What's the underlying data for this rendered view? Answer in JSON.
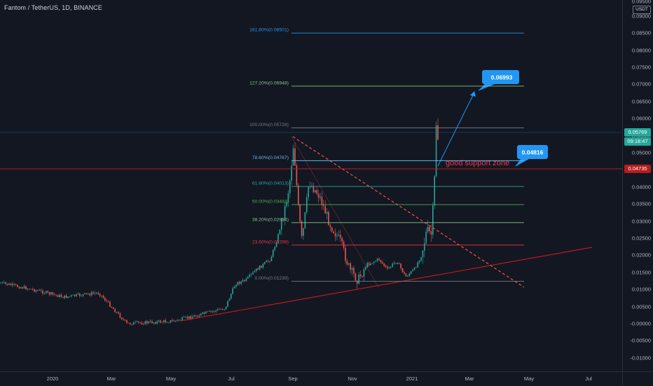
{
  "header": {
    "symbol": "Fantom / TetherUS, 1D, BINANCE"
  },
  "price_axis": {
    "currency": "USDT",
    "top_partial": "0.09500",
    "ticks": [
      "0.09000",
      "0.08500",
      "0.08000",
      "0.07500",
      "0.07000",
      "0.06500",
      "0.06000",
      "0.05500",
      "0.05000",
      "0.04500",
      "0.04000",
      "0.03500",
      "0.03000",
      "0.02500",
      "0.02000",
      "0.01500",
      "0.01000",
      "0.00500",
      "-0.00000",
      "-0.00500",
      "-0.01000"
    ],
    "tick_values": [
      0.09,
      0.085,
      0.08,
      0.075,
      0.07,
      0.065,
      0.06,
      0.055,
      0.05,
      0.045,
      0.04,
      0.035,
      0.03,
      0.025,
      0.02,
      0.015,
      0.01,
      0.005,
      0,
      -0.005,
      -0.01
    ],
    "last_price": "0.05769",
    "countdown": "09:18:47",
    "support_price": "0.04735",
    "last_price_color": "#26a69a",
    "support_color": "#b71c1c"
  },
  "time_axis": {
    "labels": [
      "2020",
      "Mar",
      "May",
      "Jul",
      "Sep",
      "Nov",
      "2021",
      "Mar",
      "May",
      "Jul"
    ]
  },
  "fib_levels": [
    {
      "label": "161.80%(0.08501)",
      "price": 0.08501,
      "color": "#2196f3"
    },
    {
      "label": "127.20%(0.06948)",
      "price": 0.06948,
      "color": "#81c784"
    },
    {
      "label": "100.00%(0.05728)",
      "price": 0.05728,
      "color": "#787b86"
    },
    {
      "label": "78.60%(0.04767)",
      "price": 0.04767,
      "color": "#64b5f6"
    },
    {
      "label": "61.80%(0.04013)",
      "price": 0.04013,
      "color": "#26a69a"
    },
    {
      "label": "50.00%(0.03483)",
      "price": 0.03483,
      "color": "#4caf50"
    },
    {
      "label": "38.20%(0.02954)",
      "price": 0.02954,
      "color": "#81c784"
    },
    {
      "label": "23.60%(0.02299)",
      "price": 0.02299,
      "color": "#f23645"
    },
    {
      "label": "0.00%(0.01239)",
      "price": 0.01239,
      "color": "#787b86"
    }
  ],
  "annotations": {
    "target_callout": "0.06993",
    "support_callout": "0.04816",
    "support_text": "good support zone",
    "callout_color": "#2196f3",
    "support_text_color": "#f23645"
  },
  "colors": {
    "up": "#26a69a",
    "down": "#ef5350",
    "support_line": "#b71c1c",
    "trendline": "#b71c1c"
  }
}
